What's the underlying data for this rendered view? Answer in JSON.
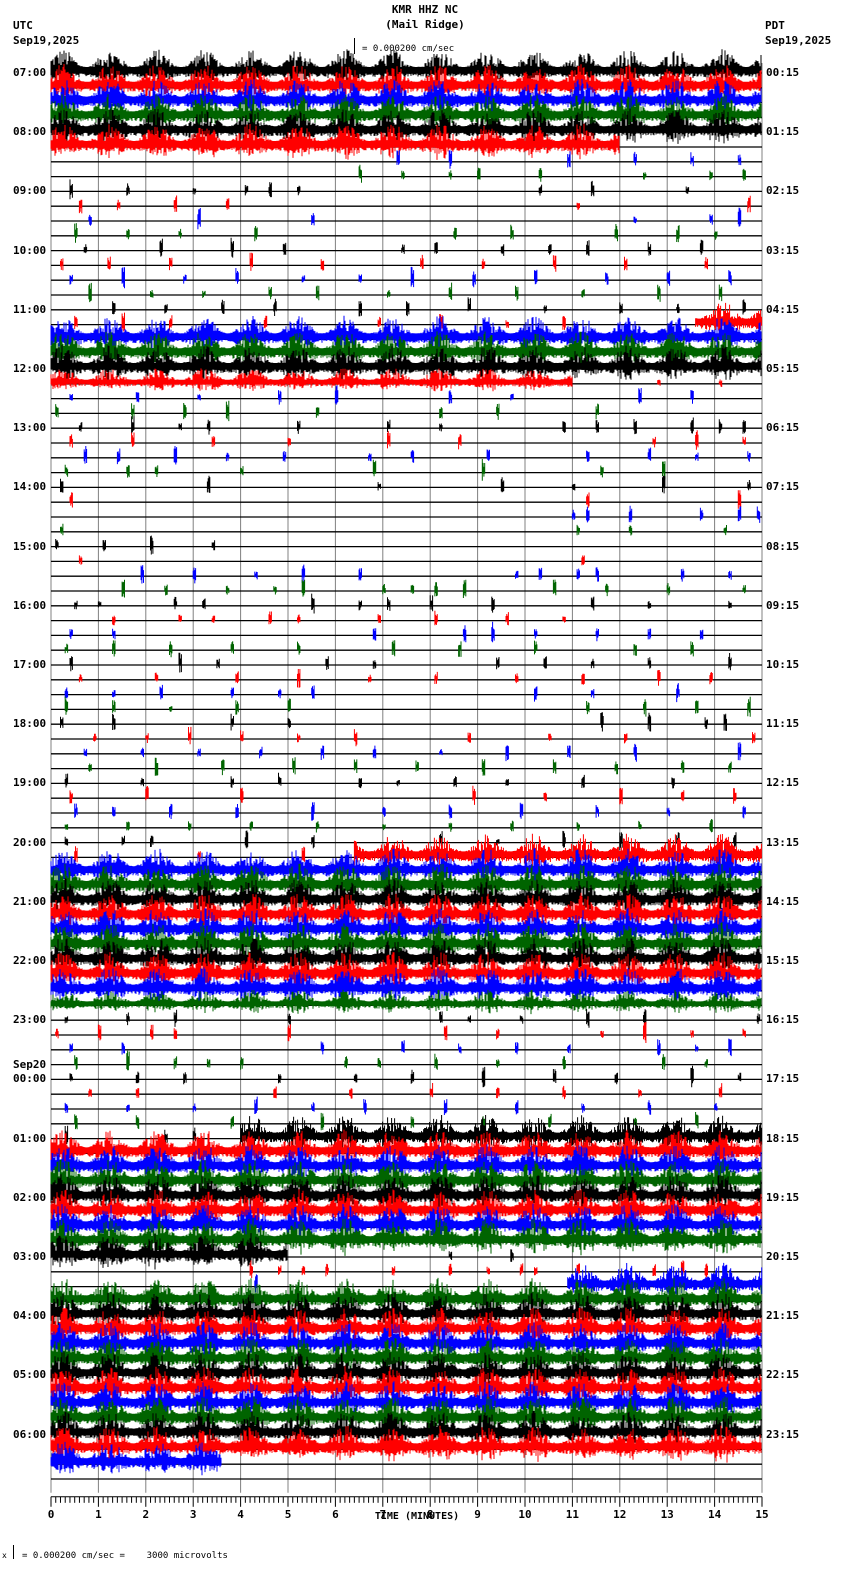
{
  "header": {
    "title": "KMR HHZ NC",
    "subtitle": "(Mail Ridge)",
    "left_tz": "UTC",
    "left_date": "Sep19,2025",
    "right_tz": "PDT",
    "right_date": "Sep19,2025",
    "scale_text": "= 0.000200 cm/sec"
  },
  "footer": {
    "scale_text": "= 0.000200 cm/sec =    3000 microvolts",
    "prefix": "x"
  },
  "colors": {
    "trace_cycle": [
      "#000000",
      "#ff0000",
      "#0000ff",
      "#006400"
    ],
    "grid": "#808080",
    "baseline": "#000000"
  },
  "chart_data": {
    "type": "helicorder",
    "title": "KMR HHZ NC (Mail Ridge)",
    "xlabel": "TIME (MINUTES)",
    "x_ticks": [
      "0",
      "1",
      "2",
      "3",
      "4",
      "5",
      "6",
      "7",
      "8",
      "9",
      "10",
      "11",
      "12",
      "13",
      "14",
      "15"
    ],
    "xlim": [
      0,
      15
    ],
    "rows_per_hour": 4,
    "row_minutes": 15,
    "grid": true,
    "left_labels": [
      {
        "row": 0,
        "text": "07:00"
      },
      {
        "row": 4,
        "text": "08:00"
      },
      {
        "row": 8,
        "text": "09:00"
      },
      {
        "row": 12,
        "text": "10:00"
      },
      {
        "row": 16,
        "text": "11:00"
      },
      {
        "row": 20,
        "text": "12:00"
      },
      {
        "row": 24,
        "text": "13:00"
      },
      {
        "row": 28,
        "text": "14:00"
      },
      {
        "row": 32,
        "text": "15:00"
      },
      {
        "row": 36,
        "text": "16:00"
      },
      {
        "row": 40,
        "text": "17:00"
      },
      {
        "row": 44,
        "text": "18:00"
      },
      {
        "row": 48,
        "text": "19:00"
      },
      {
        "row": 52,
        "text": "20:00"
      },
      {
        "row": 56,
        "text": "21:00"
      },
      {
        "row": 60,
        "text": "22:00"
      },
      {
        "row": 64,
        "text": "23:00"
      },
      {
        "row": 68,
        "text": "00:00",
        "date": "Sep20"
      },
      {
        "row": 72,
        "text": "01:00"
      },
      {
        "row": 76,
        "text": "02:00"
      },
      {
        "row": 80,
        "text": "03:00"
      },
      {
        "row": 84,
        "text": "04:00"
      },
      {
        "row": 88,
        "text": "05:00"
      },
      {
        "row": 92,
        "text": "06:00"
      }
    ],
    "right_labels": [
      "00:15",
      "01:15",
      "02:15",
      "03:15",
      "04:15",
      "05:15",
      "06:15",
      "07:15",
      "08:15",
      "09:15",
      "10:15",
      "11:15",
      "12:15",
      "13:15",
      "14:15",
      "15:15",
      "16:15",
      "17:15",
      "18:15",
      "19:15",
      "20:15",
      "21:15",
      "22:15",
      "23:15"
    ],
    "rows": [
      {
        "n": [
          [
            0,
            15,
            3
          ]
        ]
      },
      {
        "n": [
          [
            0,
            15,
            3
          ]
        ]
      },
      {
        "n": [
          [
            0,
            15,
            3
          ]
        ]
      },
      {
        "n": [
          [
            0,
            15,
            3
          ]
        ]
      },
      {
        "n": [
          [
            0,
            15,
            3
          ]
        ]
      },
      {
        "n": [
          [
            0,
            12,
            3
          ]
        ]
      },
      {
        "e": [
          7.3,
          8.4,
          10.9,
          12.3,
          13.5,
          14.5
        ]
      },
      {
        "e": [
          6.5,
          7.4,
          8.4,
          9.0,
          10.3,
          12.5,
          13.9,
          14.6
        ]
      },
      {
        "e": [
          0.4,
          1.6,
          3.0,
          4.1,
          4.6,
          5.2,
          10.3,
          11.4,
          13.4
        ]
      },
      {
        "e": [
          0.6,
          1.4,
          2.6,
          3.7,
          11.1,
          14.7
        ]
      },
      {
        "e": [
          0.8,
          3.1,
          5.5,
          12.3,
          13.9,
          14.5
        ]
      },
      {
        "e": [
          0.5,
          1.6,
          2.7,
          4.3,
          8.5,
          9.7,
          11.9,
          13.2,
          14.0
        ]
      },
      {
        "e": [
          0.7,
          2.3,
          3.8,
          4.9,
          7.4,
          8.1,
          9.5,
          10.5,
          11.3,
          12.6,
          13.7
        ]
      },
      {
        "e": [
          0.2,
          1.2,
          2.5,
          4.2,
          5.7,
          7.8,
          9.1,
          10.6,
          12.1,
          13.8
        ]
      },
      {
        "e": [
          0.4,
          1.5,
          2.8,
          3.9,
          5.3,
          6.5,
          7.6,
          8.9,
          10.2,
          11.7,
          13.0,
          14.3
        ]
      },
      {
        "e": [
          0.8,
          2.1,
          3.2,
          4.6,
          5.6,
          7.1,
          8.4,
          9.8,
          11.2,
          12.8,
          14.1
        ]
      },
      {
        "e": [
          1.3,
          2.4,
          3.6,
          4.7,
          6.5,
          7.5,
          8.8,
          10.4,
          12.0,
          13.2,
          14.6
        ]
      },
      {
        "n": [
          [
            13.6,
            15,
            3
          ]
        ],
        "e": [
          0.5,
          1.5,
          2.5,
          4.5,
          6.9,
          8.2,
          9.6,
          10.8
        ]
      },
      {
        "n": [
          [
            0,
            15,
            3
          ]
        ]
      },
      {
        "n": [
          [
            0,
            15,
            3
          ]
        ]
      },
      {
        "n": [
          [
            0,
            15,
            3
          ]
        ]
      },
      {
        "n": [
          [
            0,
            11,
            2
          ]
        ],
        "e": [
          12.8,
          14.1
        ]
      },
      {
        "e": [
          0.4,
          1.8,
          3.1,
          4.8,
          6.0,
          8.4,
          9.7,
          12.4,
          13.5
        ]
      },
      {
        "e": [
          0.1,
          1.7,
          2.8,
          3.7,
          5.6,
          8.2,
          9.4,
          11.5
        ]
      },
      {
        "e": [
          0.6,
          1.7,
          2.7,
          3.3,
          5.2,
          7.1,
          8.2,
          10.8,
          11.5,
          12.3,
          13.5,
          14.1,
          14.6
        ]
      },
      {
        "e": [
          0.4,
          1.7,
          3.4,
          5.0,
          7.1,
          8.6,
          12.7,
          13.6,
          14.6
        ]
      },
      {
        "e": [
          0.7,
          1.4,
          2.6,
          3.7,
          4.9,
          6.7,
          7.6,
          9.2,
          11.3,
          12.6,
          13.6,
          14.7
        ]
      },
      {
        "e": [
          0.3,
          1.6,
          2.2,
          4.0,
          6.8,
          9.1,
          11.6,
          12.9
        ]
      },
      {
        "e": [
          0.2,
          3.3,
          6.9,
          9.5,
          11.0,
          12.9,
          14.7
        ]
      },
      {
        "e": [
          0.4,
          11.3,
          14.5
        ]
      },
      {
        "e": [
          11.0,
          11.3,
          12.2,
          13.7,
          14.5,
          14.9
        ]
      },
      {
        "e": [
          0.2,
          11.1,
          12.2,
          14.2
        ]
      },
      {
        "e": [
          0.1,
          1.1,
          2.1,
          3.4
        ]
      },
      {
        "e": [
          0.6,
          11.2
        ]
      },
      {
        "e": [
          1.9,
          3.0,
          4.3,
          5.3,
          6.5,
          9.8,
          10.3,
          11.1,
          11.5,
          13.3,
          14.3
        ]
      },
      {
        "e": [
          1.5,
          2.4,
          3.7,
          4.7,
          5.3,
          7.0,
          7.6,
          8.1,
          8.7,
          10.6,
          11.7,
          13.0,
          14.6
        ]
      },
      {
        "e": [
          0.5,
          1.0,
          2.6,
          3.2,
          5.5,
          6.5,
          7.1,
          8.0,
          9.3,
          11.4,
          12.6,
          14.3
        ]
      },
      {
        "e": [
          1.3,
          2.7,
          3.4,
          4.6,
          5.2,
          6.9,
          8.1,
          9.6,
          10.8
        ]
      },
      {
        "e": [
          0.4,
          1.3,
          6.8,
          8.7,
          9.3,
          10.2,
          11.5,
          12.6,
          13.7
        ]
      },
      {
        "e": [
          0.3,
          1.3,
          2.5,
          3.8,
          5.2,
          7.2,
          8.6,
          10.2,
          12.3,
          13.5
        ]
      },
      {
        "e": [
          0.4,
          2.7,
          3.5,
          5.8,
          6.8,
          9.4,
          10.4,
          11.4,
          12.6,
          14.3
        ]
      },
      {
        "e": [
          0.6,
          2.2,
          3.9,
          5.2,
          6.7,
          8.1,
          9.8,
          11.2,
          12.8,
          13.9
        ]
      },
      {
        "e": [
          0.3,
          1.3,
          2.3,
          3.8,
          4.8,
          5.5,
          10.2,
          11.4,
          13.2
        ]
      },
      {
        "e": [
          0.3,
          1.3,
          2.5,
          3.9,
          5.0,
          11.3,
          12.5,
          13.6,
          14.7
        ]
      },
      {
        "e": [
          0.2,
          1.3,
          3.8,
          5.0,
          11.6,
          12.6,
          13.8,
          14.2
        ]
      },
      {
        "e": [
          0.9,
          2.0,
          2.9,
          4.0,
          5.2,
          6.4,
          8.8,
          10.5,
          12.1,
          14.8
        ]
      },
      {
        "e": [
          0.7,
          1.9,
          3.1,
          4.4,
          5.7,
          6.8,
          8.2,
          9.6,
          10.9,
          12.3,
          14.5
        ]
      },
      {
        "e": [
          0.8,
          2.2,
          3.6,
          5.1,
          6.4,
          7.7,
          9.1,
          10.6,
          11.9,
          13.3,
          14.3
        ]
      },
      {
        "e": [
          0.3,
          1.9,
          3.8,
          4.8,
          6.5,
          7.3,
          8.5,
          9.6,
          11.2,
          13.1
        ]
      },
      {
        "e": [
          0.4,
          2.0,
          4.0,
          8.9,
          10.4,
          12.0,
          13.3,
          14.4
        ]
      },
      {
        "e": [
          0.5,
          1.3,
          2.5,
          3.9,
          5.5,
          7.0,
          8.4,
          9.9,
          11.5,
          13.0,
          14.6
        ]
      },
      {
        "e": [
          0.3,
          1.6,
          2.9,
          4.2,
          5.6,
          7.0,
          8.4,
          9.7,
          11.1,
          12.4,
          13.9
        ]
      },
      {
        "e": [
          0.3,
          1.5,
          2.1,
          4.1,
          5.5,
          8.2,
          9.4,
          10.8,
          12.0,
          13.2,
          14.4
        ]
      },
      {
        "n": [
          [
            6.4,
            15,
            3
          ]
        ],
        "e": [
          0.5,
          3.1,
          5.3
        ]
      },
      {
        "n": [
          [
            0,
            15,
            3
          ]
        ]
      },
      {
        "n": [
          [
            0,
            15,
            3
          ]
        ]
      },
      {
        "n": [
          [
            0,
            15,
            3
          ]
        ]
      },
      {
        "n": [
          [
            0,
            15,
            3
          ]
        ]
      },
      {
        "n": [
          [
            0,
            15,
            3
          ]
        ]
      },
      {
        "n": [
          [
            0,
            15,
            3
          ]
        ]
      },
      {
        "n": [
          [
            0,
            15,
            3
          ]
        ]
      },
      {
        "n": [
          [
            0,
            15,
            3
          ]
        ]
      },
      {
        "n": [
          [
            0,
            15,
            3
          ]
        ]
      },
      {
        "n": [
          [
            0,
            15,
            2
          ]
        ]
      },
      {
        "e": [
          0.3,
          1.6,
          2.6,
          5.0,
          8.2,
          8.8,
          9.9,
          11.3,
          12.5,
          14.9
        ]
      },
      {
        "e": [
          0.1,
          1.0,
          2.1,
          2.6,
          5.0,
          8.3,
          9.4,
          11.6,
          12.5,
          13.5,
          14.6
        ]
      },
      {
        "e": [
          0.4,
          1.5,
          5.7,
          7.4,
          8.6,
          9.8,
          10.9,
          12.8,
          13.6,
          14.3
        ]
      },
      {
        "e": [
          0.5,
          1.6,
          2.6,
          3.3,
          4.0,
          6.2,
          6.9,
          8.1,
          9.4,
          10.8,
          12.9,
          13.8
        ]
      },
      {
        "e": [
          0.4,
          1.8,
          2.8,
          4.8,
          6.4,
          7.6,
          9.1,
          10.6,
          11.9,
          13.5,
          14.5
        ]
      },
      {
        "e": [
          0.8,
          1.8,
          4.7,
          6.3,
          8.0,
          9.4,
          10.8,
          12.4,
          14.1
        ]
      },
      {
        "e": [
          0.3,
          1.6,
          3.0,
          4.3,
          5.5,
          6.6,
          8.3,
          9.8,
          11.2,
          12.6,
          14.0
        ]
      },
      {
        "e": [
          0.5,
          1.8,
          3.8,
          5.7,
          7.6,
          9.1,
          10.5,
          12.3,
          13.6
        ]
      },
      {
        "n": [
          [
            4.0,
            15,
            3
          ]
        ],
        "e": [
          0.3,
          2.4,
          3.0
        ]
      },
      {
        "n": [
          [
            0,
            15,
            3
          ]
        ]
      },
      {
        "n": [
          [
            0,
            15,
            3
          ]
        ]
      },
      {
        "n": [
          [
            0,
            15,
            3
          ]
        ]
      },
      {
        "n": [
          [
            0,
            15,
            3
          ]
        ]
      },
      {
        "n": [
          [
            0,
            15,
            3
          ]
        ]
      },
      {
        "n": [
          [
            0,
            15,
            3
          ]
        ]
      },
      {
        "n": [
          [
            0,
            15,
            3
          ]
        ]
      },
      {
        "n": [
          [
            0,
            5,
            3
          ]
        ],
        "e": [
          8.4,
          9.7
        ]
      },
      {
        "e": [
          4.2,
          4.8,
          5.3,
          5.8,
          7.2,
          8.4,
          9.2,
          9.9,
          10.2,
          11.1,
          12.7,
          13.3,
          13.8
        ]
      },
      {
        "n": [
          [
            10.9,
            15,
            3
          ]
        ],
        "e": [
          4.3
        ]
      },
      {
        "n": [
          [
            0,
            15,
            3
          ]
        ]
      },
      {
        "n": [
          [
            0,
            15,
            3
          ]
        ]
      },
      {
        "n": [
          [
            0,
            15,
            3
          ]
        ]
      },
      {
        "n": [
          [
            0,
            15,
            3
          ]
        ]
      },
      {
        "n": [
          [
            0,
            15,
            3
          ]
        ]
      },
      {
        "n": [
          [
            0,
            15,
            3
          ]
        ]
      },
      {
        "n": [
          [
            0,
            15,
            3
          ]
        ]
      },
      {
        "n": [
          [
            0,
            15,
            3
          ]
        ]
      },
      {
        "n": [
          [
            0,
            15,
            3
          ]
        ]
      },
      {
        "n": [
          [
            0,
            15,
            3
          ]
        ]
      },
      {
        "n": [
          [
            0,
            15,
            3
          ]
        ]
      },
      {
        "n": [
          [
            0,
            3.6,
            3
          ]
        ]
      },
      {}
    ]
  }
}
